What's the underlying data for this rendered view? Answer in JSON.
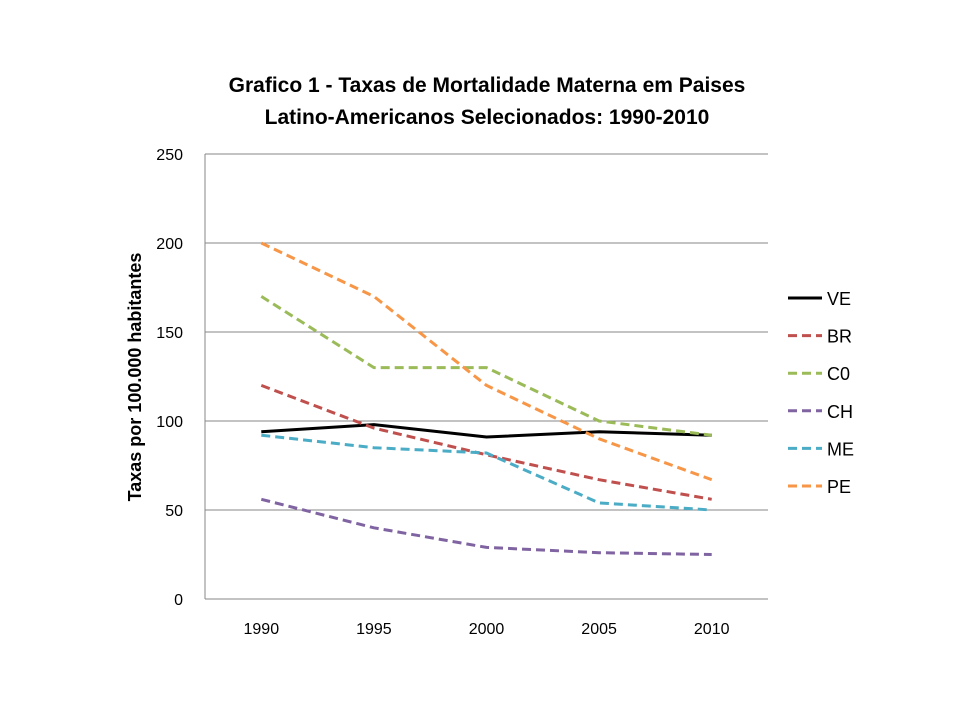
{
  "chart_data": {
    "type": "line",
    "title": [
      "Grafico 1 - Taxas de Mortalidade Materna em Paises",
      "Latino-Americanos Selecionados: 1990-2010"
    ],
    "xlabel": "",
    "ylabel": "Taxas por 100.000 habitantes",
    "categories": [
      "1990",
      "1995",
      "2000",
      "2005",
      "2010"
    ],
    "ylim": [
      0,
      250
    ],
    "yticks": [
      "0",
      "50",
      "100",
      "150",
      "200",
      "250"
    ],
    "grid": "horizontal",
    "legend": "right",
    "series": [
      {
        "name": "VE",
        "color": "#000000",
        "dashed": false,
        "values": [
          94,
          98,
          91,
          94,
          92
        ]
      },
      {
        "name": "BR",
        "color": "#C0504D",
        "dashed": true,
        "values": [
          120,
          96,
          81,
          67,
          56
        ]
      },
      {
        "name": "C0",
        "color": "#9BBB59",
        "dashed": true,
        "values": [
          170,
          130,
          130,
          100,
          92
        ]
      },
      {
        "name": "CH",
        "color": "#8064A2",
        "dashed": true,
        "values": [
          56,
          40,
          29,
          26,
          25
        ]
      },
      {
        "name": "ME",
        "color": "#4BACC6",
        "dashed": true,
        "values": [
          92,
          85,
          82,
          54,
          50
        ]
      },
      {
        "name": "PE",
        "color": "#F79646",
        "dashed": true,
        "values": [
          200,
          170,
          120,
          90,
          67
        ]
      }
    ]
  }
}
